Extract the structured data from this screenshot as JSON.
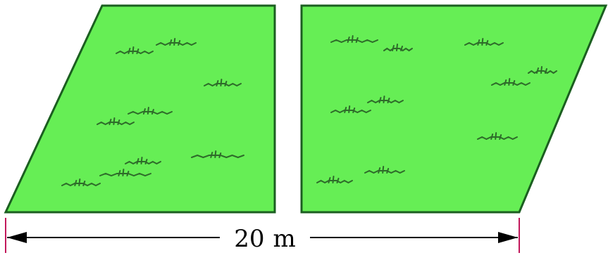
{
  "dimension": {
    "value": "20",
    "unit": "m"
  },
  "colors": {
    "grass": "#66ee55",
    "outline": "#1b5e20",
    "tuft": "#2e6b2a",
    "line": "#000000",
    "tick": "#c2185b"
  }
}
